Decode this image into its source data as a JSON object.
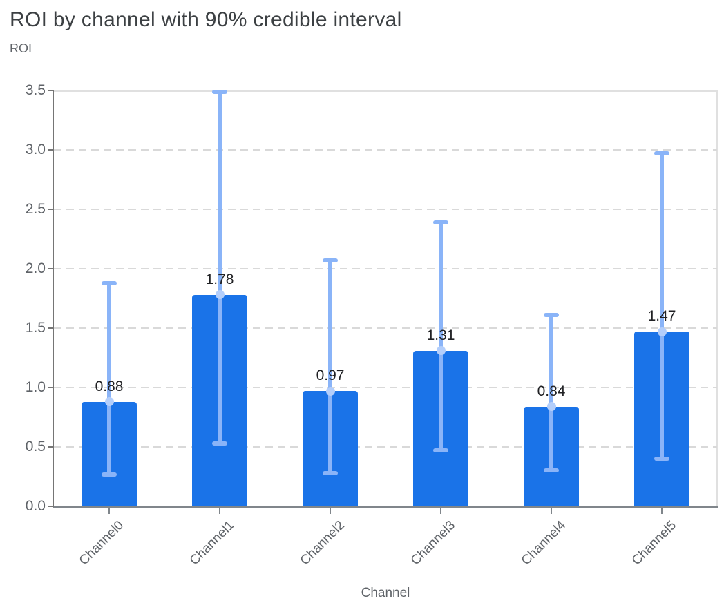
{
  "header": {
    "title": "ROI by channel with 90% credible interval"
  },
  "chart_data": {
    "type": "bar",
    "title": "ROI by channel with 90% credible interval",
    "xlabel": "Channel",
    "ylabel": "ROI",
    "categories": [
      "Channel0",
      "Channel1",
      "Channel2",
      "Channel3",
      "Channel4",
      "Channel5"
    ],
    "series": [
      {
        "name": "ROI",
        "values": [
          0.88,
          1.78,
          0.97,
          1.31,
          0.84,
          1.47
        ],
        "value_labels": [
          "0.88",
          "1.78",
          "0.97",
          "1.31",
          "0.84",
          "1.47"
        ]
      }
    ],
    "error_bars": {
      "name": "90% credible interval",
      "lower": [
        0.27,
        0.53,
        0.28,
        0.47,
        0.3,
        0.4
      ],
      "upper": [
        1.88,
        3.49,
        2.07,
        2.39,
        1.61,
        2.97
      ]
    },
    "ylim": [
      0,
      3.5
    ],
    "y_ticks": [
      0.0,
      0.5,
      1.0,
      1.5,
      2.0,
      2.5,
      3.0,
      3.5
    ],
    "y_tick_labels": [
      "0.0",
      "0.5",
      "1.0",
      "1.5",
      "2.0",
      "2.5",
      "3.0",
      "3.5"
    ],
    "grid": "horizontal-dashed",
    "legend": "none",
    "colors": {
      "bar": "#1a73e8",
      "error_bar": "#8ab4f8",
      "error_marker": "#b3cefb",
      "gridline": "#d9d9d9",
      "axis_line": "#757575",
      "bottom_axis_line": "#80868b",
      "plot_border": "#e0e0e0",
      "title_text": "#3c4043",
      "axis_text": "#5f6368",
      "value_label_text": "#202124"
    }
  }
}
